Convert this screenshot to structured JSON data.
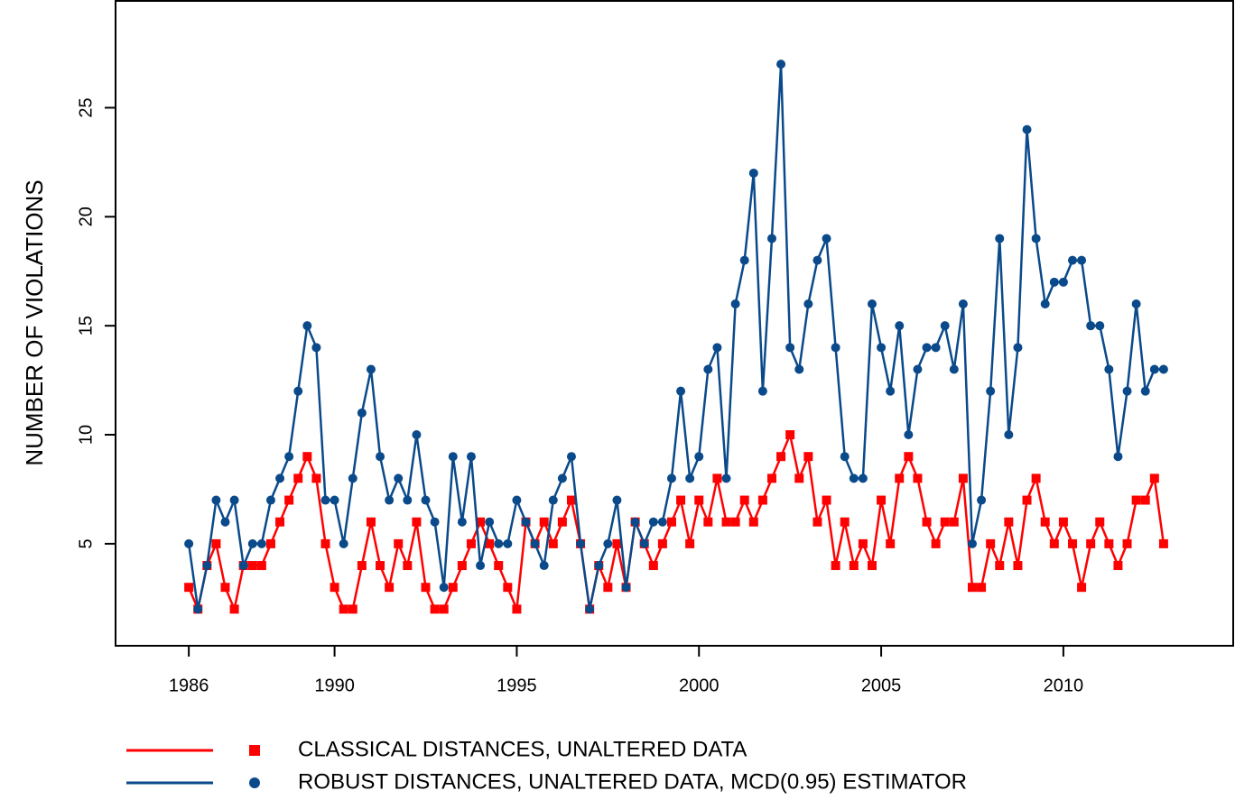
{
  "chart_data": {
    "type": "line",
    "y_label": "NUMBER OF VIOLATIONS",
    "x": [
      1986,
      1986.25,
      1986.5,
      1986.75,
      1987,
      1987.25,
      1987.5,
      1987.75,
      1988,
      1988.25,
      1988.5,
      1988.75,
      1989,
      1989.25,
      1989.5,
      1989.75,
      1990,
      1990.25,
      1990.5,
      1990.75,
      1991,
      1991.25,
      1991.5,
      1991.75,
      1992,
      1992.25,
      1992.5,
      1992.75,
      1993,
      1993.25,
      1993.5,
      1993.75,
      1994,
      1994.25,
      1994.5,
      1994.75,
      1995,
      1995.25,
      1995.5,
      1995.75,
      1996,
      1996.25,
      1996.5,
      1996.75,
      1997,
      1997.25,
      1997.5,
      1997.75,
      1998,
      1998.25,
      1998.5,
      1998.75,
      1999,
      1999.25,
      1999.5,
      1999.75,
      2000,
      2000.25,
      2000.5,
      2000.75,
      2001,
      2001.25,
      2001.5,
      2001.75,
      2002,
      2002.25,
      2002.5,
      2002.75,
      2003,
      2003.25,
      2003.5,
      2003.75,
      2004,
      2004.25,
      2004.5,
      2004.75,
      2005,
      2005.25,
      2005.5,
      2005.75,
      2006,
      2006.25,
      2006.5,
      2006.75,
      2007,
      2007.25,
      2007.5,
      2007.75,
      2008,
      2008.25,
      2008.5,
      2008.75,
      2009,
      2009.25,
      2009.5,
      2009.75,
      2010,
      2010.25,
      2010.5,
      2010.75,
      2011,
      2011.25,
      2011.5,
      2011.75,
      2012,
      2012.25,
      2012.5,
      2012.75
    ],
    "series": [
      {
        "name": "CLASSICAL DISTANCES, UNALTERED DATA",
        "color": "#ff0000",
        "marker": "square",
        "values": [
          3,
          2,
          4,
          5,
          3,
          2,
          4,
          4,
          4,
          5,
          6,
          7,
          8,
          9,
          8,
          5,
          3,
          2,
          2,
          4,
          6,
          4,
          3,
          5,
          4,
          6,
          3,
          2,
          2,
          3,
          4,
          5,
          6,
          5,
          4,
          3,
          2,
          6,
          5,
          6,
          5,
          6,
          7,
          5,
          2,
          4,
          3,
          5,
          3,
          6,
          5,
          4,
          5,
          6,
          7,
          5,
          7,
          6,
          8,
          6,
          6,
          7,
          6,
          7,
          8,
          9,
          10,
          8,
          9,
          6,
          7,
          4,
          6,
          4,
          5,
          4,
          7,
          5,
          8,
          9,
          8,
          6,
          5,
          6,
          6,
          8,
          3,
          3,
          5,
          4,
          6,
          4,
          7,
          8,
          6,
          5,
          6,
          5,
          3,
          5,
          6,
          5,
          4,
          5,
          7,
          7,
          8,
          5
        ]
      },
      {
        "name": "ROBUST DISTANCES, UNALTERED DATA, MCD(0.95) ESTIMATOR",
        "color": "#0a4a8a",
        "marker": "circle",
        "values": [
          5,
          2,
          4,
          7,
          6,
          7,
          4,
          5,
          5,
          7,
          8,
          9,
          12,
          15,
          14,
          7,
          7,
          5,
          8,
          11,
          13,
          9,
          7,
          8,
          7,
          10,
          7,
          6,
          3,
          9,
          6,
          9,
          4,
          6,
          5,
          5,
          7,
          6,
          5,
          4,
          7,
          8,
          9,
          5,
          2,
          4,
          5,
          7,
          3,
          6,
          5,
          6,
          6,
          8,
          12,
          8,
          9,
          13,
          14,
          8,
          16,
          18,
          22,
          12,
          19,
          27,
          14,
          13,
          16,
          18,
          19,
          14,
          9,
          8,
          8,
          16,
          14,
          12,
          15,
          10,
          13,
          14,
          14,
          15,
          13,
          16,
          5,
          7,
          12,
          19,
          10,
          14,
          24,
          19,
          16,
          17,
          17,
          18,
          18,
          15,
          15,
          13,
          9,
          12,
          16,
          12,
          13,
          13
        ]
      }
    ],
    "xlim": [
      1983.99,
      2014.66
    ],
    "ylim": [
      0.32,
      29.9
    ],
    "xticks": [
      1986,
      1990,
      1995,
      2000,
      2005,
      2010
    ],
    "yticks": [
      5,
      10,
      15,
      20,
      25
    ],
    "legend": "bottom"
  }
}
